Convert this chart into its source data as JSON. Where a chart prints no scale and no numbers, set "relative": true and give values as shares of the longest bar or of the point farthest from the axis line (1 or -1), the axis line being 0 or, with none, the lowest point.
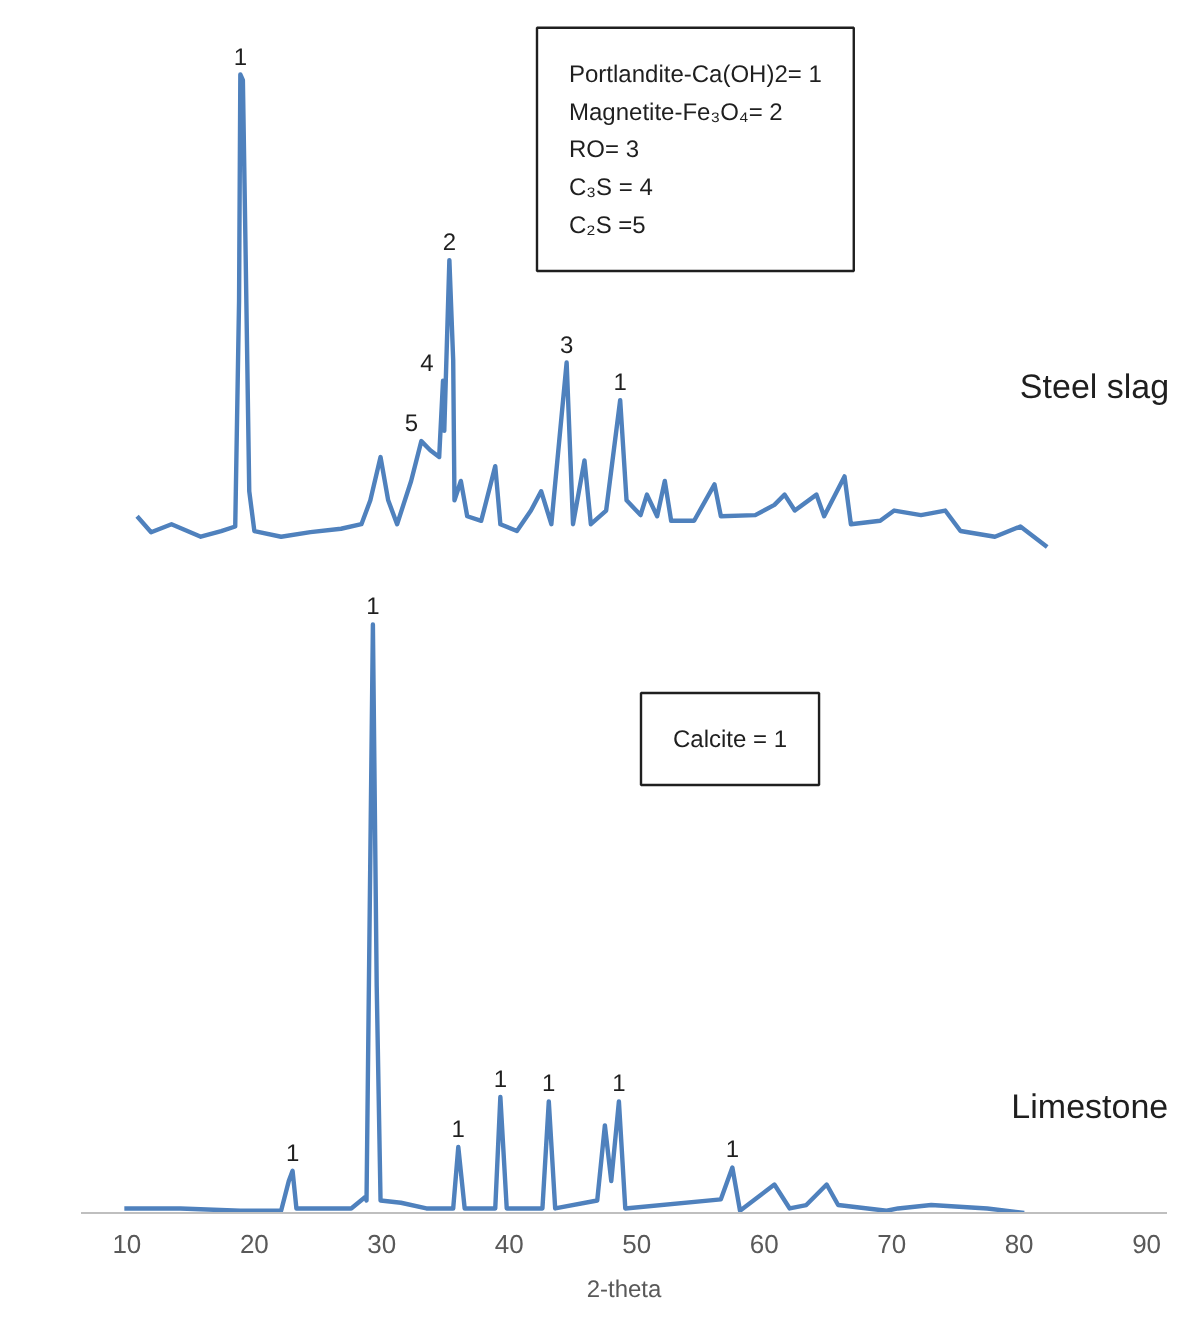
{
  "chart_data": {
    "type": "line",
    "relative": true,
    "xlabel": "2-theta",
    "xlim": [
      6.4,
      91.6
    ],
    "xticks": [
      10,
      20,
      30,
      40,
      50,
      60,
      70,
      80,
      90
    ],
    "grid": false,
    "series": [
      {
        "name": "Steel slag",
        "color": "#4f81bd",
        "x": [
          10.8,
          11.9,
          13.5,
          15.8,
          17.4,
          18.5,
          18.8,
          18.9,
          19.1,
          19.3,
          19.6,
          20.0,
          22.1,
          24.4,
          26.8,
          28.4,
          29.1,
          29.9,
          30.5,
          31.2,
          32.3,
          33.1,
          33.8,
          34.5,
          34.8,
          34.9,
          35.3,
          35.6,
          35.7,
          36.2,
          36.7,
          37.8,
          38.9,
          39.3,
          40.6,
          41.7,
          42.5,
          43.3,
          44.5,
          45.0,
          45.9,
          46.4,
          47.6,
          48.7,
          49.2,
          50.3,
          50.8,
          51.6,
          52.2,
          52.7,
          54.5,
          56.1,
          56.6,
          59.3,
          60.8,
          61.6,
          62.4,
          64.1,
          64.7,
          66.3,
          66.8,
          69.1,
          70.2,
          72.3,
          74.2,
          75.4,
          78.1,
          80.1,
          82.2
        ],
        "values": [
          0.612,
          0.598,
          0.605,
          0.594,
          0.599,
          0.603,
          0.801,
          1.0,
          0.995,
          0.854,
          0.634,
          0.599,
          0.594,
          0.598,
          0.601,
          0.605,
          0.626,
          0.664,
          0.626,
          0.605,
          0.643,
          0.678,
          0.67,
          0.664,
          0.731,
          0.687,
          0.837,
          0.749,
          0.626,
          0.643,
          0.612,
          0.608,
          0.656,
          0.605,
          0.599,
          0.617,
          0.634,
          0.605,
          0.747,
          0.605,
          0.661,
          0.605,
          0.617,
          0.714,
          0.626,
          0.613,
          0.631,
          0.612,
          0.643,
          0.608,
          0.608,
          0.64,
          0.612,
          0.613,
          0.622,
          0.631,
          0.617,
          0.631,
          0.612,
          0.647,
          0.605,
          0.608,
          0.617,
          0.613,
          0.617,
          0.599,
          0.594,
          0.603,
          0.585
        ]
      },
      {
        "name": "Limestone",
        "color": "#4f81bd",
        "x": [
          9.8,
          14.2,
          18.9,
          22.1,
          22.7,
          23.0,
          23.3,
          27.6,
          28.7,
          28.8,
          29.3,
          29.6,
          29.9,
          31.5,
          33.5,
          35.6,
          36.0,
          36.5,
          38.9,
          39.3,
          39.8,
          42.6,
          43.1,
          43.6,
          46.9,
          47.5,
          48.0,
          48.6,
          49.1,
          56.6,
          57.5,
          58.1,
          60.8,
          62.0,
          63.3,
          64.9,
          65.8,
          69.6,
          70.5,
          73.1,
          77.5,
          80.4
        ],
        "values": [
          0.004,
          0.004,
          0.002,
          0.002,
          0.028,
          0.037,
          0.004,
          0.004,
          0.014,
          0.011,
          0.517,
          0.199,
          0.011,
          0.009,
          0.004,
          0.004,
          0.058,
          0.004,
          0.004,
          0.102,
          0.004,
          0.004,
          0.098,
          0.004,
          0.011,
          0.077,
          0.028,
          0.098,
          0.004,
          0.012,
          0.04,
          0.002,
          0.025,
          0.004,
          0.007,
          0.025,
          0.007,
          0.002,
          0.004,
          0.007,
          0.004,
          0.0
        ]
      }
    ],
    "annotations": [
      {
        "text": "1",
        "x": 18.9,
        "y": 1.0
      },
      {
        "text": "5",
        "x": 33.1,
        "y": 0.678
      },
      {
        "text": "4",
        "x": 34.8,
        "y": 0.731
      },
      {
        "text": "2",
        "x": 35.3,
        "y": 0.837
      },
      {
        "text": "3",
        "x": 44.5,
        "y": 0.747
      },
      {
        "text": "1",
        "x": 48.7,
        "y": 0.714
      },
      {
        "text": "1",
        "x": 23.0,
        "y": 0.037
      },
      {
        "text": "1",
        "x": 29.3,
        "y": 0.517
      },
      {
        "text": "1",
        "x": 36.0,
        "y": 0.058
      },
      {
        "text": "1",
        "x": 39.3,
        "y": 0.102
      },
      {
        "text": "1",
        "x": 43.1,
        "y": 0.098
      },
      {
        "text": "1",
        "x": 48.6,
        "y": 0.098
      },
      {
        "text": "1",
        "x": 57.5,
        "y": 0.04
      },
      "Portlandite-Ca(OH)2= 1\nMagnetite-Fe₃O₄= 2\nRO= 3\nC₃S = 4\nC₂S =5",
      "Calcite = 1"
    ]
  }
}
